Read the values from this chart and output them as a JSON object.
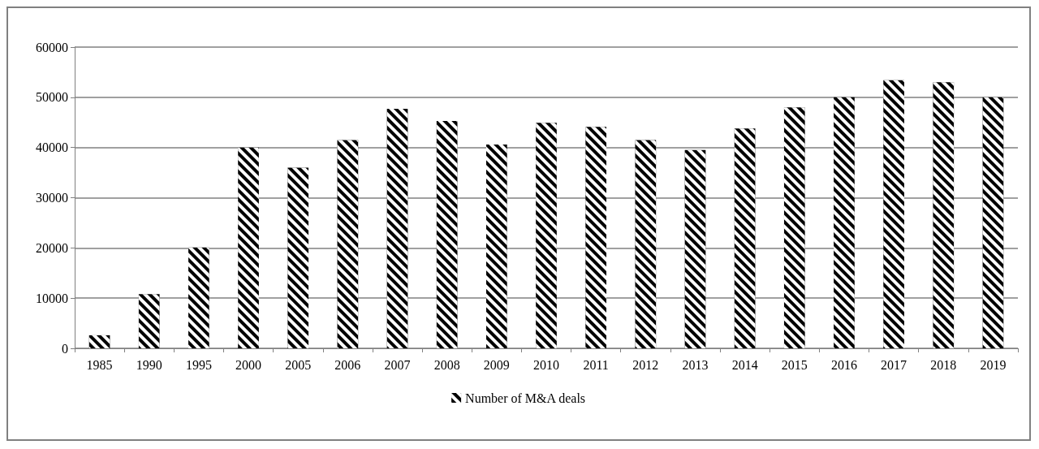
{
  "chart_data": {
    "type": "bar",
    "categories": [
      "1985",
      "1990",
      "1995",
      "2000",
      "2005",
      "2006",
      "2007",
      "2008",
      "2009",
      "2010",
      "2011",
      "2012",
      "2013",
      "2014",
      "2015",
      "2016",
      "2017",
      "2018",
      "2019"
    ],
    "series": [
      {
        "name": "Number of M&A deals",
        "color": "#000000",
        "values": [
          2600,
          10800,
          20100,
          40000,
          36000,
          41500,
          47700,
          45300,
          40600,
          44900,
          44100,
          41500,
          39500,
          43800,
          48000,
          50000,
          53400,
          53000,
          50000
        ]
      }
    ],
    "ylim": [
      0,
      60000
    ],
    "yticks": [
      0,
      10000,
      20000,
      30000,
      40000,
      50000,
      60000
    ],
    "grid": "y",
    "legend": "bottom"
  }
}
